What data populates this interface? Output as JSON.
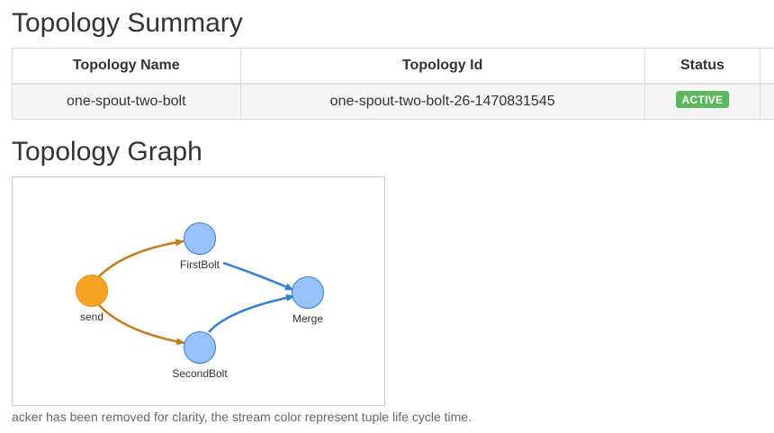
{
  "summary": {
    "title": "Topology Summary",
    "columns": {
      "name": "Topology Name",
      "id": "Topology Id",
      "status": "Status"
    },
    "row": {
      "name": "one-spout-two-bolt",
      "id": "one-spout-two-bolt-26-1470831545",
      "status": "ACTIVE"
    },
    "status_color": "#5cb85c"
  },
  "graph": {
    "title": "Topology Graph",
    "nodes": {
      "send": {
        "label": "send",
        "type": "spout",
        "color": "#f6a224"
      },
      "first": {
        "label": "FirstBolt",
        "type": "bolt",
        "color": "#97c2fc"
      },
      "second": {
        "label": "SecondBolt",
        "type": "bolt",
        "color": "#97c2fc"
      },
      "merge": {
        "label": "Merge",
        "type": "bolt",
        "color": "#97c2fc"
      }
    },
    "edges": [
      {
        "from": "send",
        "to": "FirstBolt",
        "color": "#c87b14"
      },
      {
        "from": "send",
        "to": "SecondBolt",
        "color": "#c87b14"
      },
      {
        "from": "FirstBolt",
        "to": "Merge",
        "color": "#2f7fd8"
      },
      {
        "from": "SecondBolt",
        "to": "Merge",
        "color": "#2f7fd8"
      }
    ],
    "caption": "acker has been removed for clarity, the stream color represent tuple life cycle time."
  }
}
